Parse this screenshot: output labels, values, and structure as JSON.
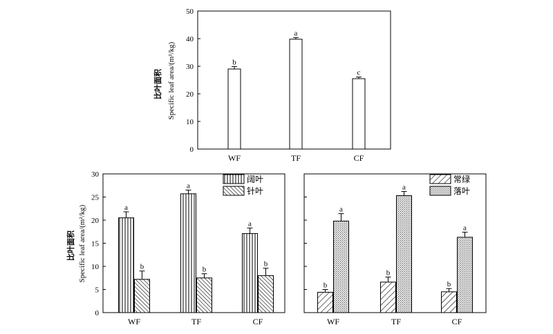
{
  "chart_data": [
    {
      "type": "bar",
      "ylabel_cn": "比叶面积",
      "ylabel_en": "Specific leaf area/(m²/kg)",
      "ylim": [
        0,
        50
      ],
      "yticks": [
        0,
        10,
        20,
        30,
        40,
        50
      ],
      "categories": [
        "WF",
        "TF",
        "CF"
      ],
      "series": [
        {
          "values": [
            29,
            39.8,
            25.5
          ],
          "errors": [
            0.9,
            0.6,
            0.6
          ],
          "letters": [
            "b",
            "a",
            "c"
          ],
          "pattern": "none"
        }
      ]
    },
    {
      "type": "bar",
      "ylabel_cn": "比叶面积",
      "ylabel_en": "Specific leaf area/(m²/kg)",
      "ylim": [
        0,
        30
      ],
      "yticks": [
        0,
        5,
        10,
        15,
        20,
        25,
        30
      ],
      "categories": [
        "WF",
        "TF",
        "CF"
      ],
      "legend_position": "top-right",
      "series": [
        {
          "name": "阔叶",
          "values": [
            20.5,
            25.7,
            17.1
          ],
          "errors": [
            1.3,
            0.8,
            1.2
          ],
          "letters": [
            "a",
            "a",
            "a"
          ],
          "pattern": "vertical"
        },
        {
          "name": "针叶",
          "values": [
            7.2,
            7.5,
            8.0
          ],
          "errors": [
            1.8,
            0.9,
            1.6
          ],
          "letters": [
            "b",
            "b",
            "b"
          ],
          "pattern": "diagonal"
        }
      ]
    },
    {
      "type": "bar",
      "ylim": [
        0,
        30
      ],
      "categories": [
        "WF",
        "TF",
        "CF"
      ],
      "legend_position": "top-right",
      "series": [
        {
          "name": "常绿",
          "values": [
            4.4,
            6.6,
            4.5
          ],
          "errors": [
            0.6,
            1.1,
            0.7
          ],
          "letters": [
            "b",
            "b",
            "b"
          ],
          "pattern": "hatch"
        },
        {
          "name": "落叶",
          "values": [
            19.8,
            25.3,
            16.3
          ],
          "errors": [
            1.6,
            0.9,
            1.1
          ],
          "letters": [
            "a",
            "a",
            "a"
          ],
          "pattern": "crosshatch"
        }
      ]
    }
  ]
}
